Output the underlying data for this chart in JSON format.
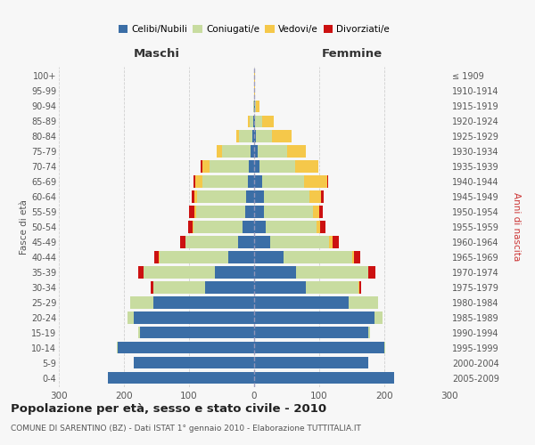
{
  "age_groups": [
    "0-4",
    "5-9",
    "10-14",
    "15-19",
    "20-24",
    "25-29",
    "30-34",
    "35-39",
    "40-44",
    "45-49",
    "50-54",
    "55-59",
    "60-64",
    "65-69",
    "70-74",
    "75-79",
    "80-84",
    "85-89",
    "90-94",
    "95-99",
    "100+"
  ],
  "birth_years": [
    "2005-2009",
    "2000-2004",
    "1995-1999",
    "1990-1994",
    "1985-1989",
    "1980-1984",
    "1975-1979",
    "1970-1974",
    "1965-1969",
    "1960-1964",
    "1955-1959",
    "1950-1954",
    "1945-1949",
    "1940-1944",
    "1935-1939",
    "1930-1934",
    "1925-1929",
    "1920-1924",
    "1915-1919",
    "1910-1914",
    "≤ 1909"
  ],
  "colors": {
    "celibi": "#3b6ea6",
    "coniugati": "#c8dca0",
    "vedovi": "#f5c84a",
    "divorziati": "#cc1111"
  },
  "males": {
    "celibi": [
      225,
      185,
      210,
      175,
      185,
      155,
      75,
      60,
      40,
      25,
      18,
      14,
      12,
      10,
      8,
      5,
      3,
      2,
      0,
      0,
      0
    ],
    "coniugati": [
      0,
      0,
      1,
      3,
      10,
      35,
      80,
      110,
      105,
      80,
      75,
      75,
      75,
      70,
      60,
      45,
      20,
      5,
      1,
      0,
      0
    ],
    "vedovi": [
      0,
      0,
      0,
      0,
      0,
      0,
      0,
      0,
      1,
      1,
      2,
      3,
      5,
      10,
      12,
      8,
      5,
      2,
      0,
      0,
      0
    ],
    "divorziati": [
      0,
      0,
      0,
      0,
      0,
      1,
      4,
      8,
      8,
      8,
      6,
      8,
      4,
      3,
      2,
      0,
      0,
      0,
      0,
      0,
      0
    ]
  },
  "females": {
    "celibi": [
      215,
      175,
      200,
      175,
      185,
      145,
      80,
      65,
      45,
      25,
      18,
      15,
      15,
      12,
      8,
      5,
      3,
      2,
      1,
      0,
      0
    ],
    "coniugati": [
      0,
      0,
      1,
      3,
      12,
      45,
      80,
      110,
      105,
      90,
      78,
      75,
      70,
      65,
      55,
      45,
      25,
      10,
      2,
      0,
      0
    ],
    "vedovi": [
      0,
      0,
      0,
      0,
      0,
      0,
      1,
      1,
      3,
      5,
      6,
      10,
      18,
      35,
      35,
      30,
      30,
      18,
      5,
      2,
      1
    ],
    "divorziati": [
      0,
      0,
      0,
      0,
      0,
      1,
      4,
      10,
      10,
      10,
      7,
      5,
      4,
      2,
      1,
      0,
      0,
      0,
      0,
      0,
      0
    ]
  },
  "title": "Popolazione per età, sesso e stato civile - 2010",
  "subtitle": "COMUNE DI SARENTINO (BZ) - Dati ISTAT 1° gennaio 2010 - Elaborazione TUTTITALIA.IT",
  "xlabel_left": "Maschi",
  "xlabel_right": "Femmine",
  "ylabel_left": "Fasce di età",
  "ylabel_right": "Anni di nascita",
  "xlim": 300,
  "background_color": "#f7f7f7",
  "grid_color": "#cccccc"
}
